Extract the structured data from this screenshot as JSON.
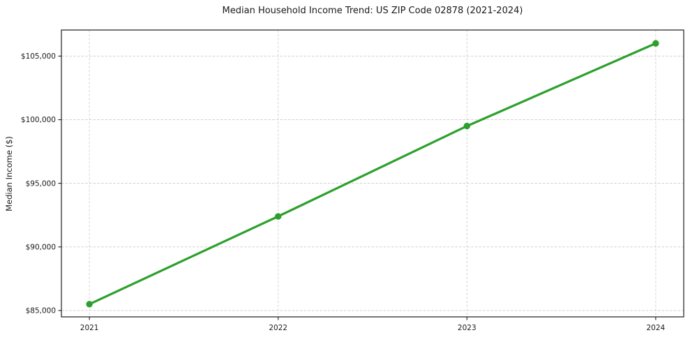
{
  "figure": {
    "title": "Median Household Income Trend: US ZIP Code 02878 (2021-2024)",
    "ylabel": "Median Income ($)"
  },
  "chart_data": {
    "type": "line",
    "title": "Median Household Income Trend: US ZIP Code 02878 (2021-2024)",
    "xlabel": "",
    "ylabel": "Median Income ($)",
    "x": [
      2021,
      2022,
      2023,
      2024
    ],
    "xtick_labels": [
      "2021",
      "2022",
      "2023",
      "2024"
    ],
    "values": [
      85500,
      92400,
      99500,
      106000
    ],
    "yticks": [
      85000,
      90000,
      95000,
      100000,
      105000
    ],
    "ytick_labels": [
      "$85,000",
      "$90,000",
      "$95,000",
      "$100,000",
      "$105,000"
    ],
    "ylim": [
      84500,
      107050
    ],
    "grid": true,
    "grid_style": "dashed",
    "legend": false,
    "marker": "circle",
    "colors": {
      "line": "#2ca02c",
      "marker": "#2ca02c",
      "grid": "#d0d0d0",
      "spine": "#1c1c1c",
      "text": "#1a1a1a",
      "background": "#ffffff"
    }
  }
}
